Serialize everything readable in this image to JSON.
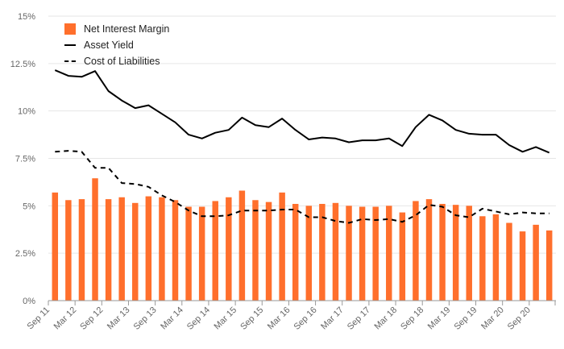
{
  "chart_data": {
    "type": "bar",
    "x_tick_labels": [
      "Sep 11",
      "Mar 12",
      "Sep 12",
      "Mar 13",
      "Sep 13",
      "Mar 14",
      "Sep 14",
      "Mar 15",
      "Sep 15",
      "Mar 16",
      "Sep 16",
      "Mar 17",
      "Sep 17",
      "Mar 18",
      "Sep 18",
      "Mar 19",
      "Sep 19",
      "Mar 20",
      "Sep 20"
    ],
    "y_tick_labels": [
      "0%",
      "2.5%",
      "5%",
      "7.5%",
      "10%",
      "12.5%",
      "15%"
    ],
    "ylim": [
      0,
      15
    ],
    "y_unit": "%",
    "grid": "horizontal",
    "legend_position": "top-left",
    "series": [
      {
        "name": "Net Interest Margin",
        "kind": "bar",
        "color": "#ff6f2c",
        "values": [
          5.7,
          5.3,
          5.35,
          6.45,
          5.35,
          5.45,
          5.15,
          5.5,
          5.45,
          5.3,
          4.95,
          4.95,
          5.25,
          5.45,
          5.8,
          5.3,
          5.2,
          5.7,
          5.1,
          5.0,
          5.1,
          5.15,
          5.0,
          4.95,
          4.95,
          5.0,
          4.65,
          5.25,
          5.35,
          5.1,
          5.05,
          5.0,
          4.45,
          4.55,
          4.1,
          3.65,
          4.0,
          3.7
        ]
      },
      {
        "name": "Asset Yield",
        "kind": "line",
        "color": "#000000",
        "values": [
          12.15,
          11.85,
          11.8,
          12.1,
          11.05,
          10.55,
          10.15,
          10.3,
          9.85,
          9.4,
          8.75,
          8.55,
          8.85,
          9.0,
          9.65,
          9.25,
          9.15,
          9.6,
          9.0,
          8.5,
          8.6,
          8.55,
          8.35,
          8.45,
          8.45,
          8.55,
          8.15,
          9.15,
          9.8,
          9.5,
          9.0,
          8.8,
          8.75,
          8.75,
          8.2,
          7.85,
          8.1,
          7.8
        ]
      },
      {
        "name": "Cost of Liabilities",
        "kind": "line-dashed",
        "color": "#000000",
        "values": [
          7.85,
          7.9,
          7.85,
          7.0,
          7.0,
          6.2,
          6.15,
          6.0,
          5.55,
          5.2,
          4.75,
          4.45,
          4.45,
          4.5,
          4.75,
          4.75,
          4.75,
          4.8,
          4.8,
          4.4,
          4.4,
          4.2,
          4.1,
          4.3,
          4.25,
          4.3,
          4.15,
          4.5,
          5.05,
          4.95,
          4.5,
          4.4,
          4.85,
          4.7,
          4.55,
          4.65,
          4.6,
          4.6
        ]
      }
    ]
  },
  "legend": {
    "nim_label": "Net Interest Margin",
    "ay_label": "Asset Yield",
    "col_label": "Cost of Liabilities"
  }
}
